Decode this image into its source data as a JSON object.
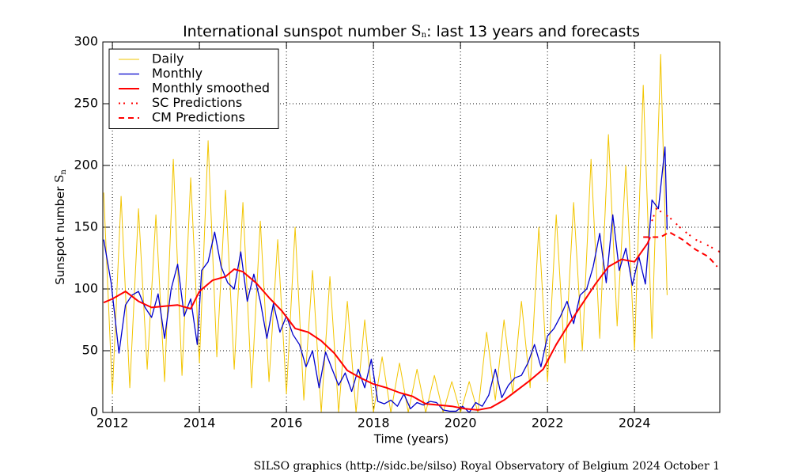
{
  "chart_data": {
    "type": "line",
    "title": [
      "International sunspot number ",
      "S",
      "n",
      ": last 13 years and forecasts"
    ],
    "ylabel": [
      "Sunspot number ",
      "S",
      "n"
    ],
    "xlabel": "Time (years)",
    "footer": "SILSO graphics (http://sidc.be/silso)  Royal Observatory of Belgium  2024 October 1",
    "xlim": [
      2011.78,
      2025.96
    ],
    "ylim": [
      0,
      300
    ],
    "xticks": [
      2012,
      2014,
      2016,
      2018,
      2020,
      2022,
      2024
    ],
    "yticks": [
      0,
      50,
      100,
      150,
      200,
      250,
      300
    ],
    "grid": true,
    "legend": "upper left",
    "series": [
      {
        "name": "Daily",
        "color": "#f2c500",
        "style": "solid",
        "width": 1,
        "x": [
          2011.8,
          2012.0,
          2012.2,
          2012.4,
          2012.6,
          2012.8,
          2013.0,
          2013.2,
          2013.4,
          2013.6,
          2013.8,
          2014.0,
          2014.2,
          2014.4,
          2014.6,
          2014.8,
          2015.0,
          2015.2,
          2015.4,
          2015.6,
          2015.8,
          2016.0,
          2016.2,
          2016.4,
          2016.6,
          2016.8,
          2017.0,
          2017.2,
          2017.4,
          2017.6,
          2017.8,
          2018.0,
          2018.2,
          2018.4,
          2018.6,
          2018.8,
          2019.0,
          2019.2,
          2019.4,
          2019.6,
          2019.8,
          2020.0,
          2020.2,
          2020.4,
          2020.6,
          2020.8,
          2021.0,
          2021.2,
          2021.4,
          2021.6,
          2021.8,
          2022.0,
          2022.2,
          2022.4,
          2022.6,
          2022.8,
          2023.0,
          2023.2,
          2023.4,
          2023.6,
          2023.8,
          2024.0,
          2024.2,
          2024.4,
          2024.6,
          2024.75
        ],
        "values": [
          178,
          15,
          175,
          20,
          165,
          35,
          160,
          25,
          205,
          30,
          190,
          40,
          220,
          45,
          180,
          35,
          170,
          20,
          155,
          25,
          140,
          15,
          150,
          10,
          115,
          0,
          110,
          0,
          90,
          0,
          75,
          0,
          45,
          0,
          40,
          0,
          35,
          0,
          30,
          0,
          25,
          0,
          25,
          0,
          65,
          10,
          75,
          15,
          90,
          20,
          150,
          25,
          160,
          40,
          170,
          50,
          205,
          60,
          225,
          70,
          200,
          50,
          265,
          60,
          290,
          95
        ]
      },
      {
        "name": "Monthly",
        "color": "#0000cc",
        "style": "solid",
        "width": 1.3,
        "x": [
          2011.8,
          2011.97,
          2012.15,
          2012.3,
          2012.45,
          2012.6,
          2012.75,
          2012.9,
          2013.05,
          2013.2,
          2013.35,
          2013.5,
          2013.65,
          2013.8,
          2013.95,
          2014.05,
          2014.2,
          2014.35,
          2014.5,
          2014.65,
          2014.8,
          2014.95,
          2015.1,
          2015.25,
          2015.4,
          2015.55,
          2015.7,
          2015.85,
          2016.0,
          2016.15,
          2016.3,
          2016.45,
          2016.6,
          2016.75,
          2016.9,
          2017.05,
          2017.2,
          2017.35,
          2017.5,
          2017.65,
          2017.8,
          2017.95,
          2018.1,
          2018.25,
          2018.4,
          2018.55,
          2018.7,
          2018.85,
          2019.0,
          2019.15,
          2019.3,
          2019.45,
          2019.6,
          2019.75,
          2019.9,
          2020.05,
          2020.2,
          2020.35,
          2020.5,
          2020.65,
          2020.8,
          2020.95,
          2021.1,
          2021.25,
          2021.4,
          2021.55,
          2021.7,
          2021.85,
          2022.0,
          2022.15,
          2022.3,
          2022.45,
          2022.6,
          2022.75,
          2022.9,
          2023.05,
          2023.2,
          2023.35,
          2023.5,
          2023.65,
          2023.8,
          2023.95,
          2024.1,
          2024.25,
          2024.4,
          2024.55,
          2024.7,
          2024.75
        ],
        "values": [
          140,
          105,
          48,
          87,
          95,
          98,
          85,
          77,
          96,
          60,
          100,
          120,
          78,
          92,
          55,
          115,
          122,
          146,
          118,
          105,
          100,
          130,
          90,
          112,
          90,
          60,
          88,
          65,
          78,
          63,
          55,
          37,
          50,
          20,
          49,
          35,
          22,
          32,
          17,
          35,
          20,
          43,
          9,
          7,
          10,
          5,
          15,
          3,
          8,
          6,
          9,
          8,
          2,
          1,
          1,
          5,
          0,
          8,
          5,
          14,
          35,
          12,
          22,
          28,
          30,
          40,
          55,
          37,
          62,
          68,
          78,
          90,
          72,
          95,
          100,
          118,
          145,
          105,
          160,
          115,
          133,
          103,
          126,
          104,
          172,
          165,
          215,
          148
        ]
      },
      {
        "name": "Monthly smoothed",
        "color": "#ff0000",
        "style": "solid",
        "width": 2,
        "x": [
          2011.8,
          2012.0,
          2012.3,
          2012.6,
          2012.9,
          2013.2,
          2013.5,
          2013.8,
          2014.0,
          2014.3,
          2014.6,
          2014.8,
          2015.0,
          2015.3,
          2015.6,
          2015.9,
          2016.2,
          2016.5,
          2016.8,
          2017.1,
          2017.4,
          2017.7,
          2018.0,
          2018.3,
          2018.6,
          2018.9,
          2019.2,
          2019.5,
          2019.8,
          2020.1,
          2020.4,
          2020.7,
          2021.0,
          2021.3,
          2021.6,
          2021.9,
          2022.2,
          2022.5,
          2022.8,
          2023.1,
          2023.4,
          2023.7,
          2024.0,
          2024.3,
          2024.36
        ],
        "values": [
          89,
          92,
          98,
          90,
          85,
          86,
          87,
          84,
          98,
          107,
          110,
          116,
          114,
          105,
          93,
          82,
          68,
          65,
          58,
          48,
          34,
          28,
          23,
          20,
          16,
          13,
          7,
          6,
          5,
          3,
          2,
          4,
          10,
          18,
          26,
          35,
          55,
          72,
          88,
          104,
          118,
          124,
          122,
          137,
          142
        ]
      },
      {
        "name": "SC Predictions",
        "color": "#ff0000",
        "style": "dashdot",
        "width": 2,
        "x": [
          2024.4,
          2024.5,
          2024.8,
          2025.1,
          2025.4,
          2025.7,
          2025.96
        ],
        "values": [
          155,
          165,
          158,
          148,
          140,
          135,
          130
        ]
      },
      {
        "name": "CM Predictions",
        "color": "#ff0000",
        "style": "dashed",
        "width": 2,
        "x": [
          2024.2,
          2024.6,
          2024.8,
          2025.1,
          2025.4,
          2025.7,
          2025.9
        ],
        "values": [
          142,
          142,
          146,
          140,
          132,
          126,
          118
        ]
      }
    ]
  }
}
